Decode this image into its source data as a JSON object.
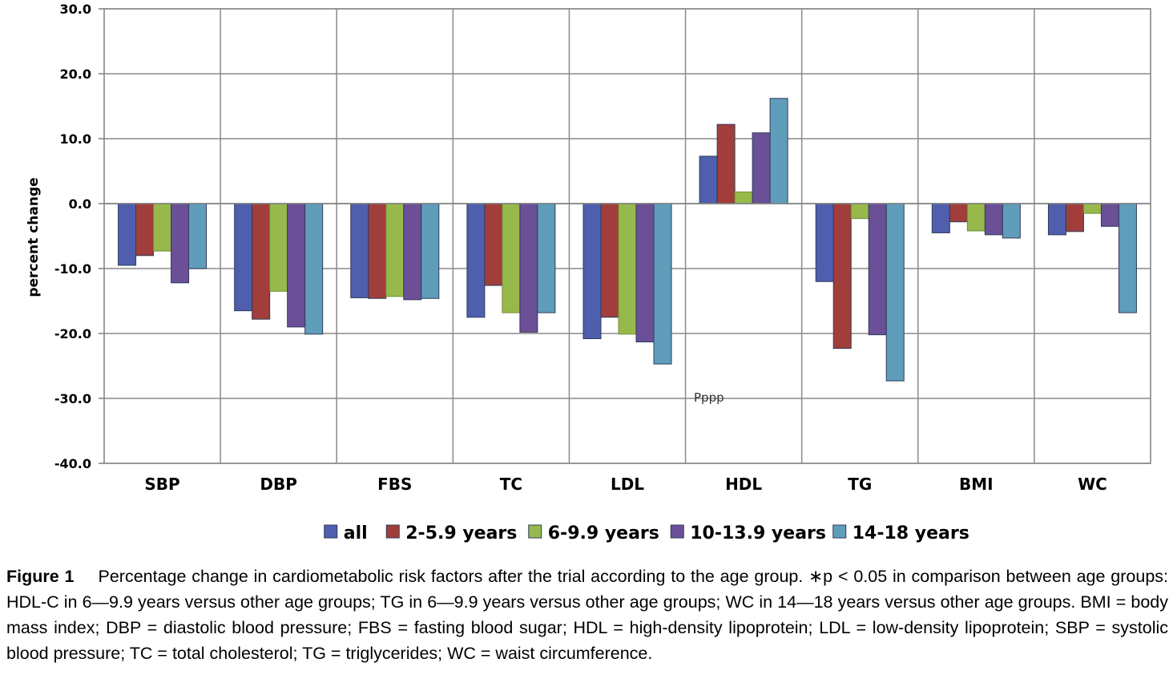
{
  "chart_data": {
    "type": "bar",
    "title": "",
    "xlabel": "",
    "ylabel": "percent change",
    "ylim": [
      -40,
      30
    ],
    "yticks": [
      "30.0",
      "20.0",
      "10.0",
      "0.0",
      "-10.0",
      "-20.0",
      "-30.0",
      "-40.0"
    ],
    "categories": [
      "SBP",
      "DBP",
      "FBS",
      "TC",
      "LDL",
      "HDL",
      "TG",
      "BMI",
      "WC"
    ],
    "series": [
      {
        "name": "all",
        "color": "#4f5fae",
        "values": [
          -9.5,
          -16.5,
          -14.5,
          -17.5,
          -20.8,
          7.3,
          -12.0,
          -4.5,
          -4.8
        ]
      },
      {
        "name": "2-5.9 years",
        "color": "#a13e3b",
        "values": [
          -8.0,
          -17.8,
          -14.6,
          -12.6,
          -17.5,
          12.2,
          -22.3,
          -2.8,
          -4.3
        ]
      },
      {
        "name": "6-9.9 years",
        "color": "#97b94c",
        "values": [
          -7.3,
          -13.5,
          -14.3,
          -16.8,
          -20.1,
          1.8,
          -2.3,
          -4.2,
          -1.5
        ]
      },
      {
        "name": "10-13.9 years",
        "color": "#6b4f97",
        "values": [
          -12.2,
          -19.0,
          -14.8,
          -19.8,
          -21.3,
          10.9,
          -20.2,
          -4.8,
          -3.5
        ]
      },
      {
        "name": "14-18 years",
        "color": "#5f9dbb",
        "values": [
          -10.0,
          -20.1,
          -14.6,
          -16.8,
          -24.7,
          16.2,
          -27.3,
          -5.3,
          -16.8
        ]
      }
    ],
    "annotations": [
      {
        "text": "Pppp"
      }
    ],
    "grid": true,
    "legend_position": "bottom"
  },
  "caption": {
    "label": "Figure 1",
    "text": "Percentage change in cardiometabolic risk factors after the trial according to the age group. ∗p < 0.05 in comparison between age groups: HDL-C in 6—9.9 years versus other age groups; TG in 6—9.9 years versus other age groups; WC in 14—18 years versus other age groups. BMI = body mass index; DBP = diastolic blood pressure; FBS = fasting blood sugar; HDL = high-density lipoprotein; LDL = low-density lipoprotein; SBP = systolic blood pressure; TC = total cholesterol; TG = triglycerides; WC = waist circumference."
  }
}
